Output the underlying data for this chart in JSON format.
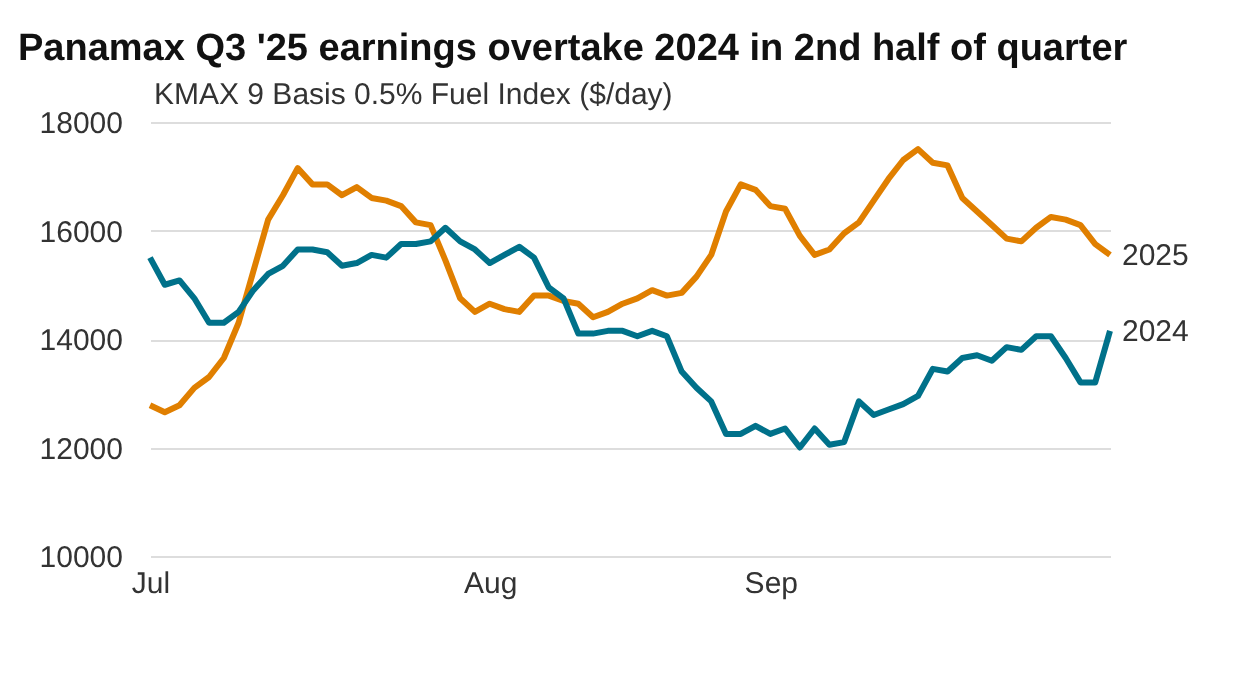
{
  "chart_data": {
    "type": "line",
    "title": "Panamax Q3 '25 earnings overtake 2024 in 2nd half of quarter",
    "subtitle": "KMAX 9 Basis 0.5% Fuel Index ($/day)",
    "categories": [
      "Jul",
      null,
      null,
      null,
      null,
      null,
      null,
      null,
      null,
      null,
      null,
      null,
      null,
      null,
      null,
      null,
      null,
      null,
      null,
      null,
      null,
      null,
      null,
      "Aug",
      null,
      null,
      null,
      null,
      null,
      null,
      null,
      null,
      null,
      null,
      null,
      null,
      null,
      null,
      null,
      null,
      null,
      null,
      "Sep",
      null,
      null,
      null,
      null,
      null,
      null,
      null,
      null,
      null,
      null,
      null,
      null,
      null,
      null,
      null,
      null,
      null,
      null,
      null,
      null,
      null,
      null,
      null
    ],
    "series": [
      {
        "name": "2025",
        "color": "#e07f00",
        "values": [
          12780,
          12650,
          12780,
          13100,
          13300,
          13650,
          14300,
          15250,
          16200,
          16650,
          17150,
          16850,
          16850,
          16650,
          16800,
          16600,
          16550,
          16450,
          16150,
          16100,
          15450,
          14750,
          14500,
          14650,
          14550,
          14500,
          14800,
          14800,
          14700,
          14650,
          14400,
          14500,
          14650,
          14750,
          14900,
          14800,
          14850,
          15150,
          15550,
          16350,
          16850,
          16750,
          16450,
          16400,
          15900,
          15550,
          15650,
          15950,
          16150,
          16550,
          16950,
          17300,
          17500,
          17250,
          17200,
          16600,
          16350,
          16100,
          15850,
          15800,
          16050,
          16250,
          16200,
          16100,
          15750,
          15550
        ]
      },
      {
        "name": "2024",
        "color": "#00718a",
        "values": [
          15500,
          15000,
          15080,
          14750,
          14300,
          14300,
          14500,
          14900,
          15200,
          15350,
          15650,
          15650,
          15600,
          15350,
          15400,
          15550,
          15500,
          15750,
          15750,
          15800,
          16050,
          15800,
          15650,
          15400,
          15550,
          15700,
          15500,
          14950,
          14750,
          14100,
          14100,
          14150,
          14150,
          14050,
          14150,
          14050,
          13400,
          13100,
          12850,
          12250,
          12250,
          12400,
          12250,
          12350,
          12000,
          12350,
          12050,
          12100,
          12850,
          12600,
          12700,
          12800,
          12950,
          13450,
          13400,
          13650,
          13700,
          13600,
          13850,
          13800,
          14050,
          14050,
          13650,
          13200,
          13200,
          14150
        ]
      }
    ],
    "ylim": [
      10000,
      18000
    ],
    "yticks": [
      10000,
      12000,
      14000,
      16000,
      18000
    ],
    "grid": "y",
    "legend": false
  }
}
